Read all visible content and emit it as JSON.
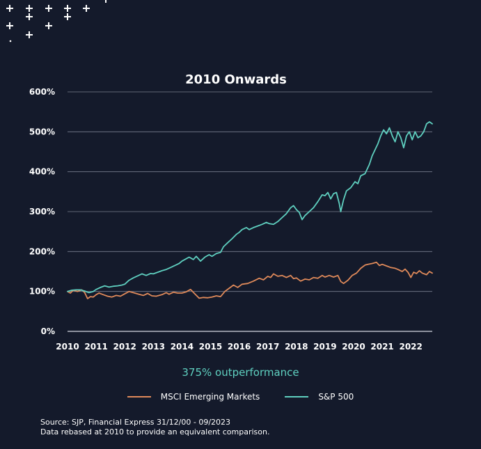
{
  "colors": {
    "background": "#141a2b",
    "grid": "#7a8090",
    "msci": "#e08a5a",
    "sp500": "#5fd0c0",
    "annotation": "#5fd0c0",
    "decoration": "#ffffff"
  },
  "decoration_icon": "plus-sign-pattern",
  "chart_data": {
    "type": "line",
    "title": "2010 Onwards",
    "xlabel": "",
    "ylabel": "",
    "x_ticks": [
      "2010",
      "2011",
      "2012",
      "2013",
      "2014",
      "2015",
      "2016",
      "2017",
      "2018",
      "2019",
      "2020",
      "2021",
      "2022"
    ],
    "y_ticks": [
      "0%",
      "100%",
      "200%",
      "300%",
      "400%",
      "500%",
      "600%"
    ],
    "xlim": [
      2010,
      2022.75
    ],
    "ylim": [
      0,
      600
    ],
    "grid": "horizontal",
    "legend_position": "bottom",
    "series": [
      {
        "name": "MSCI Emerging Markets",
        "color": "#e08a5a",
        "points": [
          [
            2010.0,
            100
          ],
          [
            2010.1,
            96
          ],
          [
            2010.2,
            103
          ],
          [
            2010.35,
            100
          ],
          [
            2010.5,
            104
          ],
          [
            2010.6,
            97
          ],
          [
            2010.7,
            82
          ],
          [
            2010.8,
            87
          ],
          [
            2010.9,
            86
          ],
          [
            2011.0,
            92
          ],
          [
            2011.1,
            96
          ],
          [
            2011.25,
            92
          ],
          [
            2011.4,
            88
          ],
          [
            2011.55,
            86
          ],
          [
            2011.7,
            90
          ],
          [
            2011.85,
            88
          ],
          [
            2012.0,
            94
          ],
          [
            2012.15,
            100
          ],
          [
            2012.3,
            97
          ],
          [
            2012.5,
            93
          ],
          [
            2012.65,
            90
          ],
          [
            2012.8,
            95
          ],
          [
            2012.95,
            89
          ],
          [
            2013.1,
            88
          ],
          [
            2013.3,
            92
          ],
          [
            2013.45,
            97
          ],
          [
            2013.55,
            93
          ],
          [
            2013.7,
            98
          ],
          [
            2013.85,
            96
          ],
          [
            2014.0,
            96
          ],
          [
            2014.15,
            99
          ],
          [
            2014.3,
            105
          ],
          [
            2014.45,
            94
          ],
          [
            2014.6,
            83
          ],
          [
            2014.75,
            85
          ],
          [
            2014.9,
            84
          ],
          [
            2015.05,
            86
          ],
          [
            2015.2,
            89
          ],
          [
            2015.35,
            87
          ],
          [
            2015.5,
            100
          ],
          [
            2015.65,
            108
          ],
          [
            2015.8,
            116
          ],
          [
            2015.95,
            110
          ],
          [
            2016.1,
            118
          ],
          [
            2016.3,
            120
          ],
          [
            2016.5,
            126
          ],
          [
            2016.7,
            133
          ],
          [
            2016.85,
            129
          ],
          [
            2017.0,
            138
          ],
          [
            2017.1,
            135
          ],
          [
            2017.2,
            144
          ],
          [
            2017.35,
            138
          ],
          [
            2017.5,
            140
          ],
          [
            2017.65,
            135
          ],
          [
            2017.8,
            140
          ],
          [
            2017.9,
            132
          ],
          [
            2018.0,
            134
          ],
          [
            2018.15,
            126
          ],
          [
            2018.3,
            131
          ],
          [
            2018.45,
            129
          ],
          [
            2018.6,
            135
          ],
          [
            2018.75,
            133
          ],
          [
            2018.9,
            140
          ],
          [
            2019.0,
            136
          ],
          [
            2019.15,
            140
          ],
          [
            2019.3,
            136
          ],
          [
            2019.45,
            140
          ],
          [
            2019.55,
            125
          ],
          [
            2019.65,
            120
          ],
          [
            2019.8,
            128
          ],
          [
            2019.95,
            140
          ],
          [
            2020.1,
            146
          ],
          [
            2020.25,
            158
          ],
          [
            2020.4,
            166
          ],
          [
            2020.5,
            168
          ],
          [
            2020.65,
            170
          ],
          [
            2020.8,
            173
          ],
          [
            2020.9,
            165
          ],
          [
            2021.0,
            168
          ],
          [
            2021.15,
            164
          ],
          [
            2021.3,
            160
          ],
          [
            2021.45,
            158
          ],
          [
            2021.55,
            155
          ],
          [
            2021.7,
            150
          ],
          [
            2021.8,
            156
          ],
          [
            2021.9,
            148
          ],
          [
            2022.0,
            135
          ],
          [
            2022.1,
            148
          ],
          [
            2022.2,
            145
          ],
          [
            2022.3,
            152
          ],
          [
            2022.4,
            146
          ],
          [
            2022.55,
            142
          ],
          [
            2022.65,
            150
          ],
          [
            2022.75,
            146
          ]
        ]
      },
      {
        "name": "S&P 500",
        "color": "#5fd0c0",
        "points": [
          [
            2010.0,
            100
          ],
          [
            2010.15,
            103
          ],
          [
            2010.3,
            104
          ],
          [
            2010.45,
            104
          ],
          [
            2010.6,
            101
          ],
          [
            2010.75,
            97
          ],
          [
            2010.9,
            100
          ],
          [
            2011.0,
            105
          ],
          [
            2011.15,
            110
          ],
          [
            2011.3,
            114
          ],
          [
            2011.45,
            111
          ],
          [
            2011.6,
            113
          ],
          [
            2011.75,
            114
          ],
          [
            2011.9,
            116
          ],
          [
            2012.0,
            118
          ],
          [
            2012.15,
            128
          ],
          [
            2012.3,
            134
          ],
          [
            2012.45,
            139
          ],
          [
            2012.6,
            144
          ],
          [
            2012.75,
            140
          ],
          [
            2012.9,
            145
          ],
          [
            2013.0,
            144
          ],
          [
            2013.15,
            148
          ],
          [
            2013.3,
            152
          ],
          [
            2013.45,
            155
          ],
          [
            2013.6,
            160
          ],
          [
            2013.75,
            165
          ],
          [
            2013.9,
            170
          ],
          [
            2014.0,
            176
          ],
          [
            2014.15,
            182
          ],
          [
            2014.25,
            186
          ],
          [
            2014.4,
            180
          ],
          [
            2014.5,
            188
          ],
          [
            2014.65,
            176
          ],
          [
            2014.8,
            186
          ],
          [
            2014.95,
            192
          ],
          [
            2015.05,
            188
          ],
          [
            2015.2,
            195
          ],
          [
            2015.35,
            198
          ],
          [
            2015.45,
            212
          ],
          [
            2015.6,
            222
          ],
          [
            2015.75,
            232
          ],
          [
            2015.9,
            243
          ],
          [
            2016.0,
            248
          ],
          [
            2016.1,
            255
          ],
          [
            2016.25,
            260
          ],
          [
            2016.35,
            255
          ],
          [
            2016.5,
            260
          ],
          [
            2016.65,
            264
          ],
          [
            2016.8,
            268
          ],
          [
            2016.95,
            273
          ],
          [
            2017.05,
            270
          ],
          [
            2017.2,
            268
          ],
          [
            2017.35,
            275
          ],
          [
            2017.5,
            285
          ],
          [
            2017.65,
            295
          ],
          [
            2017.8,
            310
          ],
          [
            2017.9,
            315
          ],
          [
            2018.0,
            305
          ],
          [
            2018.1,
            298
          ],
          [
            2018.2,
            280
          ],
          [
            2018.3,
            290
          ],
          [
            2018.45,
            300
          ],
          [
            2018.6,
            310
          ],
          [
            2018.75,
            325
          ],
          [
            2018.9,
            342
          ],
          [
            2019.0,
            340
          ],
          [
            2019.1,
            348
          ],
          [
            2019.2,
            332
          ],
          [
            2019.3,
            345
          ],
          [
            2019.4,
            348
          ],
          [
            2019.5,
            320
          ],
          [
            2019.55,
            300
          ],
          [
            2019.65,
            330
          ],
          [
            2019.75,
            352
          ],
          [
            2019.9,
            360
          ],
          [
            2020.05,
            375
          ],
          [
            2020.15,
            370
          ],
          [
            2020.25,
            390
          ],
          [
            2020.4,
            395
          ],
          [
            2020.55,
            418
          ],
          [
            2020.65,
            440
          ],
          [
            2020.75,
            455
          ],
          [
            2020.85,
            470
          ],
          [
            2020.95,
            490
          ],
          [
            2021.05,
            505
          ],
          [
            2021.15,
            495
          ],
          [
            2021.25,
            510
          ],
          [
            2021.35,
            490
          ],
          [
            2021.45,
            475
          ],
          [
            2021.55,
            500
          ],
          [
            2021.65,
            485
          ],
          [
            2021.75,
            460
          ],
          [
            2021.85,
            490
          ],
          [
            2021.95,
            500
          ],
          [
            2022.05,
            480
          ],
          [
            2022.15,
            500
          ],
          [
            2022.25,
            485
          ],
          [
            2022.35,
            490
          ],
          [
            2022.45,
            500
          ],
          [
            2022.55,
            520
          ],
          [
            2022.65,
            525
          ],
          [
            2022.75,
            520
          ]
        ]
      }
    ]
  },
  "annotation": "375% outperformance",
  "legend": {
    "items": [
      {
        "label": "MSCI Emerging Markets",
        "color": "#e08a5a"
      },
      {
        "label": "S&P 500",
        "color": "#5fd0c0"
      }
    ]
  },
  "source": {
    "line1": "Source: SJP, Financial Express 31/12/00 - 09/2023",
    "line2": "Data rebased at 2010 to provide an equivalent comparison."
  }
}
